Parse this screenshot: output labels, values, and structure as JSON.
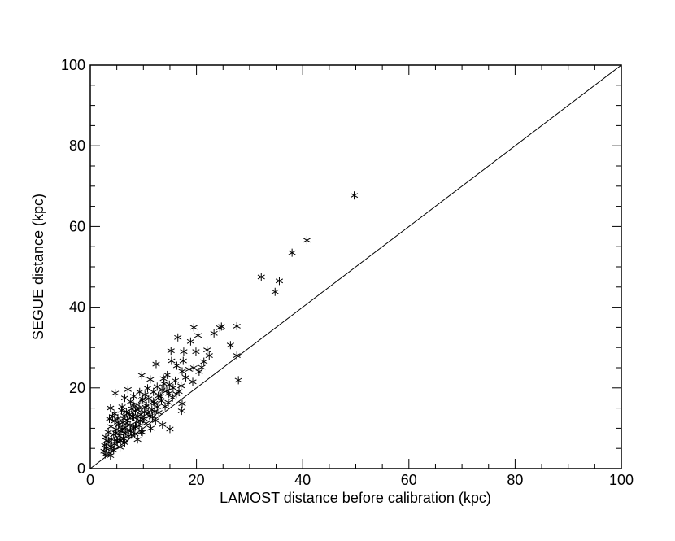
{
  "chart_data": {
    "type": "scatter",
    "xlabel": "LAMOST distance before calibration (kpc)",
    "ylabel": "SEGUE distance (kpc)",
    "xlim": [
      0,
      100
    ],
    "ylim": [
      0,
      100
    ],
    "grid": false,
    "x_major_ticks": [
      0,
      20,
      40,
      60,
      80,
      100
    ],
    "y_major_ticks": [
      0,
      20,
      40,
      60,
      80,
      100
    ],
    "x_tick_labels": [
      "0",
      "20",
      "40",
      "60",
      "80",
      "100"
    ],
    "y_tick_labels": [
      "0",
      "20",
      "40",
      "60",
      "80",
      "100"
    ],
    "minor_tick_step": 5,
    "marker": "asterisk",
    "reference_line": {
      "type": "one-to-one",
      "from": [
        0,
        0
      ],
      "to": [
        100,
        100
      ]
    },
    "points": [
      [
        49.7,
        67.7
      ],
      [
        40.8,
        56.6
      ],
      [
        38.0,
        53.5
      ],
      [
        32.2,
        47.5
      ],
      [
        35.6,
        46.5
      ],
      [
        34.8,
        43.8
      ],
      [
        24.7,
        35.2
      ],
      [
        27.6,
        35.3
      ],
      [
        19.5,
        35.0
      ],
      [
        24.4,
        34.9
      ],
      [
        23.3,
        33.5
      ],
      [
        20.3,
        33.0
      ],
      [
        16.5,
        32.5
      ],
      [
        18.9,
        31.5
      ],
      [
        26.4,
        30.6
      ],
      [
        22.0,
        29.4
      ],
      [
        15.2,
        29.2
      ],
      [
        17.6,
        29.0
      ],
      [
        19.9,
        29.0
      ],
      [
        22.4,
        28.0
      ],
      [
        27.6,
        28.0
      ],
      [
        15.3,
        26.7
      ],
      [
        17.5,
        26.7
      ],
      [
        21.4,
        26.5
      ],
      [
        12.4,
        25.9
      ],
      [
        16.3,
        25.5
      ],
      [
        19.5,
        25.0
      ],
      [
        18.6,
        24.6
      ],
      [
        17.3,
        24.1
      ],
      [
        20.5,
        24.0
      ],
      [
        14.5,
        23.2
      ],
      [
        9.7,
        23.1
      ],
      [
        13.8,
        22.3
      ],
      [
        11.3,
        22.1
      ],
      [
        16.0,
        21.8
      ],
      [
        27.9,
        21.9
      ],
      [
        14.9,
        20.8
      ],
      [
        17.1,
        20.5
      ],
      [
        12.6,
        20.3
      ],
      [
        15.6,
        20.0
      ],
      [
        10.8,
        19.9
      ],
      [
        7.1,
        19.6
      ],
      [
        13.5,
        19.5
      ],
      [
        16.7,
        19.1
      ],
      [
        9.3,
        19.0
      ],
      [
        11.9,
        19.0
      ],
      [
        4.7,
        18.7
      ],
      [
        14.8,
        18.6
      ],
      [
        10.3,
        18.3
      ],
      [
        12.8,
        18.0
      ],
      [
        8.2,
        17.9
      ],
      [
        15.5,
        17.6
      ],
      [
        6.5,
        17.5
      ],
      [
        11.0,
        17.3
      ],
      [
        9.7,
        16.9
      ],
      [
        13.4,
        16.8
      ],
      [
        7.6,
        16.6
      ],
      [
        12.1,
        16.2
      ],
      [
        17.3,
        16.1
      ],
      [
        8.8,
        15.9
      ],
      [
        10.6,
        15.6
      ],
      [
        6.0,
        15.3
      ],
      [
        14.1,
        15.4
      ],
      [
        3.8,
        15.0
      ],
      [
        9.2,
        15.0
      ],
      [
        7.8,
        14.8
      ],
      [
        11.6,
        14.6
      ],
      [
        17.2,
        14.3
      ],
      [
        5.9,
        14.4
      ],
      [
        8.5,
        14.2
      ],
      [
        10.2,
        14.0
      ],
      [
        12.9,
        13.9
      ],
      [
        4.6,
        13.6
      ],
      [
        7.1,
        13.7
      ],
      [
        9.5,
        13.4
      ],
      [
        6.4,
        13.1
      ],
      [
        11.2,
        13.0
      ],
      [
        8.2,
        12.7
      ],
      [
        5.2,
        12.5
      ],
      [
        3.6,
        12.3
      ],
      [
        9.8,
        12.2
      ],
      [
        7.0,
        12.0
      ],
      [
        12.3,
        11.9
      ],
      [
        4.6,
        11.8
      ],
      [
        8.7,
        11.6
      ],
      [
        6.1,
        11.4
      ],
      [
        10.5,
        11.2
      ],
      [
        13.6,
        10.9
      ],
      [
        5.5,
        11.0
      ],
      [
        7.5,
        10.8
      ],
      [
        9.2,
        10.6
      ],
      [
        3.9,
        10.4
      ],
      [
        6.6,
        10.2
      ],
      [
        8.2,
        10.0
      ],
      [
        11.4,
        10.0
      ],
      [
        15.0,
        9.8
      ],
      [
        4.9,
        9.7
      ],
      [
        7.1,
        9.5
      ],
      [
        5.8,
        9.2
      ],
      [
        9.6,
        9.1
      ],
      [
        3.4,
        9.0
      ],
      [
        6.6,
        8.8
      ],
      [
        8.4,
        8.6
      ],
      [
        4.4,
        8.4
      ],
      [
        5.5,
        8.1
      ],
      [
        7.2,
        8.0
      ],
      [
        2.9,
        7.8
      ],
      [
        6.2,
        7.5
      ],
      [
        4.0,
        7.3
      ],
      [
        8.9,
        7.2
      ],
      [
        5.0,
        7.0
      ],
      [
        3.5,
        6.6
      ],
      [
        6.5,
        6.4
      ],
      [
        4.6,
        6.1
      ],
      [
        2.7,
        5.8
      ],
      [
        3.8,
        5.5
      ],
      [
        5.6,
        5.3
      ],
      [
        3.0,
        5.0
      ],
      [
        4.4,
        4.6
      ],
      [
        2.6,
        4.3
      ],
      [
        3.5,
        4.0
      ],
      [
        2.8,
        3.5
      ],
      [
        3.8,
        3.2
      ],
      [
        5.1,
        6.7
      ],
      [
        6.9,
        11.3
      ],
      [
        7.9,
        12.9
      ],
      [
        10.4,
        15.2
      ],
      [
        11.9,
        16.6
      ],
      [
        13.2,
        17.9
      ],
      [
        14.4,
        19.3
      ],
      [
        9.0,
        13.0
      ],
      [
        6.0,
        9.9
      ],
      [
        5.3,
        10.8
      ],
      [
        7.4,
        13.4
      ],
      [
        8.8,
        14.6
      ],
      [
        10.9,
        13.7
      ],
      [
        12.6,
        15.3
      ],
      [
        9.9,
        17.2
      ],
      [
        8.1,
        15.7
      ],
      [
        6.8,
        14.1
      ],
      [
        4.2,
        12.9
      ],
      [
        3.1,
        6.9
      ],
      [
        4.8,
        8.8
      ],
      [
        6.3,
        12.4
      ],
      [
        7.6,
        9.3
      ],
      [
        9.4,
        11.8
      ],
      [
        11.7,
        12.8
      ],
      [
        14.7,
        16.4
      ],
      [
        16.2,
        18.5
      ],
      [
        18.0,
        22.6
      ],
      [
        19.3,
        21.5
      ],
      [
        21.0,
        25.1
      ],
      [
        8.5,
        10.4
      ],
      [
        10.1,
        12.4
      ],
      [
        12.1,
        14.1
      ],
      [
        13.9,
        21.0
      ],
      [
        7.7,
        8.4
      ],
      [
        5.7,
        6.9
      ],
      [
        4.1,
        5.3
      ],
      [
        9.8,
        9.0
      ]
    ]
  }
}
